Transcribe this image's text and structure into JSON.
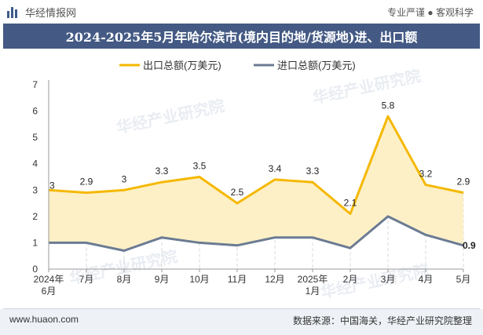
{
  "header": {
    "brand": "华经情报网",
    "tagline": "专业严谨 ● 客观科学"
  },
  "title": "2024-2025年5月年哈尔滨市(境内目的地/货源地)进、出口额",
  "footer": {
    "website": "www.huaon.com",
    "source": "数据来源：中国海关，华经产业研究院整理"
  },
  "watermark": "华经产业研究院",
  "colors": {
    "export": "#f5b800",
    "import": "#6b7b93",
    "fill": "#fdf0c7",
    "titlebar": "#445a84"
  },
  "chart_data": {
    "type": "line",
    "title": "2024-2025年5月年哈尔滨市(境内目的地/货源地)进、出口额",
    "categories": [
      [
        "2024年",
        "6月"
      ],
      [
        "7月"
      ],
      [
        "8月"
      ],
      [
        "9月"
      ],
      [
        "10月"
      ],
      [
        "11月"
      ],
      [
        "12月"
      ],
      [
        "2025年",
        "1月"
      ],
      [
        "2月"
      ],
      [
        "3月"
      ],
      [
        "4月"
      ],
      [
        "5月"
      ]
    ],
    "series": [
      {
        "name": "出口总额(万美元)",
        "values": [
          3,
          2.9,
          3,
          3.3,
          3.5,
          2.5,
          3.4,
          3.3,
          2.1,
          5.8,
          3.2,
          2.9
        ]
      },
      {
        "name": "进口总额(万美元)",
        "values": [
          1.0,
          1.0,
          0.7,
          1.2,
          1.0,
          0.9,
          1.2,
          1.2,
          0.8,
          2.0,
          1.3,
          0.9
        ]
      }
    ],
    "export_labels": [
      "3",
      "2.9",
      "3",
      "3.3",
      "3.5",
      "2.5",
      "3.4",
      "3.3",
      "2.1",
      "5.8",
      "3.2",
      "2.9"
    ],
    "import_last_label": "0.9",
    "ylim": [
      0,
      7
    ],
    "yticks": [
      "0",
      "1",
      "2",
      "3",
      "4",
      "5",
      "6",
      "7"
    ],
    "legend_position": "top"
  }
}
